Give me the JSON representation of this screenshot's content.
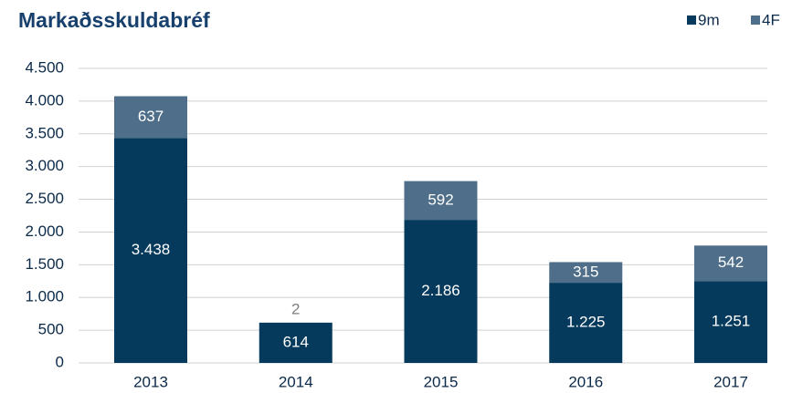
{
  "chart_data": {
    "type": "bar",
    "stacked": true,
    "title": "Markaðsskuldabréf",
    "categories": [
      "2013",
      "2014",
      "2015",
      "2016",
      "2017"
    ],
    "series": [
      {
        "name": "9m",
        "color": "#063a5c",
        "values": [
          3438,
          614,
          2186,
          1225,
          1251
        ],
        "value_labels": [
          "3.438",
          "614",
          "2.186",
          "1.225",
          "1.251"
        ]
      },
      {
        "name": "4F",
        "color": "#4f6e89",
        "values": [
          637,
          2,
          592,
          315,
          542
        ]
      }
    ],
    "ylim": [
      0,
      4500
    ],
    "yticks": [
      0,
      500,
      {
        "value": 1000,
        "label": "1.000"
      },
      {
        "value": 1500,
        "label": "1.500"
      },
      {
        "value": 2000,
        "label": "2.000"
      },
      {
        "value": 2500,
        "label": "2.500"
      },
      {
        "value": 3000,
        "label": "3.000"
      },
      {
        "value": 3500,
        "label": "3.500"
      },
      {
        "value": 4000,
        "label": "4.000"
      },
      {
        "value": 4500,
        "label": "4.500"
      }
    ],
    "grid": true,
    "legend": "top-right"
  }
}
